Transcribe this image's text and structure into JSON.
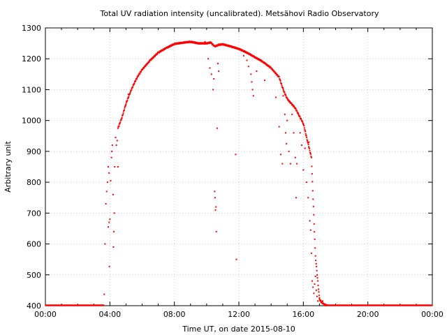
{
  "chart_data": {
    "type": "scatter",
    "title": "Total UV radiation intensity (uncalibrated). Metsähovi Radio Observatory",
    "xlabel": "Time UT, on date 2015-08-10",
    "ylabel": "Arbitrary unit",
    "xlim": [
      "00:00",
      "24:00"
    ],
    "ylim": [
      400,
      1300
    ],
    "x_ticks": [
      "00:00",
      "04:00",
      "08:00",
      "12:00",
      "16:00",
      "20:00",
      "00:00"
    ],
    "y_ticks": [
      400,
      500,
      600,
      700,
      800,
      900,
      1000,
      1100,
      1200,
      1300
    ],
    "grid": true,
    "legend": "none",
    "series_color": "#ff0000",
    "series": [
      {
        "x_unit": "hours UT",
        "baseline": {
          "x_range": [
            0.0,
            3.65
          ],
          "y": 400
        },
        "envelope": [
          [
            4.5,
            975
          ],
          [
            4.75,
            1010
          ],
          [
            5.0,
            1055
          ],
          [
            5.25,
            1090
          ],
          [
            5.5,
            1120
          ],
          [
            5.75,
            1145
          ],
          [
            6.0,
            1165
          ],
          [
            6.5,
            1195
          ],
          [
            7.0,
            1220
          ],
          [
            7.5,
            1235
          ],
          [
            8.0,
            1248
          ],
          [
            8.5,
            1252
          ],
          [
            9.0,
            1255
          ],
          [
            9.5,
            1250
          ],
          [
            10.0,
            1250
          ],
          [
            10.25,
            1253
          ],
          [
            10.5,
            1240
          ],
          [
            10.75,
            1245
          ],
          [
            11.0,
            1247
          ],
          [
            11.5,
            1240
          ],
          [
            12.0,
            1232
          ],
          [
            12.5,
            1220
          ],
          [
            13.0,
            1205
          ],
          [
            13.5,
            1190
          ],
          [
            14.0,
            1170
          ],
          [
            14.5,
            1140
          ],
          [
            14.75,
            1100
          ],
          [
            15.0,
            1070
          ],
          [
            15.25,
            1055
          ],
          [
            15.5,
            1040
          ],
          [
            15.75,
            1015
          ],
          [
            16.0,
            990
          ],
          [
            16.25,
            935
          ],
          [
            16.5,
            880
          ],
          [
            16.75,
            560
          ],
          [
            17.0,
            420
          ],
          [
            17.25,
            405
          ],
          [
            17.5,
            400
          ]
        ],
        "baseline_after": {
          "x_range": [
            17.3,
            24.0
          ],
          "y": 400
        },
        "scattered_points": [
          [
            3.65,
            437
          ],
          [
            3.7,
            600
          ],
          [
            3.75,
            730
          ],
          [
            3.8,
            770
          ],
          [
            3.85,
            800
          ],
          [
            3.9,
            850
          ],
          [
            3.95,
            830
          ],
          [
            3.9,
            655
          ],
          [
            3.95,
            670
          ],
          [
            3.97,
            527
          ],
          [
            4.0,
            680
          ],
          [
            4.05,
            805
          ],
          [
            4.1,
            880
          ],
          [
            4.12,
            900
          ],
          [
            4.15,
            920
          ],
          [
            4.2,
            760
          ],
          [
            4.22,
            590
          ],
          [
            4.25,
            640
          ],
          [
            4.27,
            700
          ],
          [
            4.3,
            850
          ],
          [
            4.35,
            945
          ],
          [
            4.4,
            920
          ],
          [
            4.45,
            935
          ],
          [
            4.5,
            850
          ],
          [
            4.55,
            980
          ],
          [
            5.15,
            1085
          ],
          [
            9.9,
            1255
          ],
          [
            10.1,
            1200
          ],
          [
            10.2,
            1170
          ],
          [
            10.3,
            1150
          ],
          [
            10.4,
            1100
          ],
          [
            10.45,
            1135
          ],
          [
            10.5,
            770
          ],
          [
            10.52,
            750
          ],
          [
            10.55,
            710
          ],
          [
            10.58,
            720
          ],
          [
            10.6,
            640
          ],
          [
            10.65,
            975
          ],
          [
            10.7,
            1185
          ],
          [
            10.75,
            1160
          ],
          [
            11.8,
            890
          ],
          [
            11.85,
            550
          ],
          [
            12.3,
            1210
          ],
          [
            12.5,
            1195
          ],
          [
            12.6,
            1175
          ],
          [
            12.75,
            1150
          ],
          [
            12.8,
            1125
          ],
          [
            12.85,
            1100
          ],
          [
            12.9,
            1080
          ],
          [
            13.1,
            1160
          ],
          [
            13.6,
            1130
          ],
          [
            14.3,
            1075
          ],
          [
            14.5,
            980
          ],
          [
            14.6,
            890
          ],
          [
            14.7,
            860
          ],
          [
            14.75,
            1080
          ],
          [
            14.85,
            1020
          ],
          [
            14.9,
            960
          ],
          [
            14.95,
            925
          ],
          [
            15.0,
            1000
          ],
          [
            15.1,
            900
          ],
          [
            15.2,
            860
          ],
          [
            15.3,
            1020
          ],
          [
            15.4,
            960
          ],
          [
            15.5,
            880
          ],
          [
            15.55,
            750
          ],
          [
            15.6,
            860
          ],
          [
            15.7,
            1020
          ],
          [
            15.8,
            960
          ],
          [
            15.9,
            920
          ],
          [
            16.0,
            840
          ],
          [
            16.1,
            910
          ],
          [
            16.2,
            800
          ],
          [
            16.3,
            750
          ],
          [
            16.35,
            930
          ],
          [
            16.4,
            675
          ],
          [
            16.45,
            645
          ],
          [
            16.5,
            570
          ],
          [
            16.55,
            480
          ],
          [
            16.6,
            460
          ],
          [
            16.65,
            440
          ],
          [
            16.7,
            470
          ],
          [
            16.75,
            495
          ],
          [
            16.8,
            450
          ],
          [
            16.85,
            430
          ],
          [
            16.9,
            415
          ],
          [
            17.0,
            425
          ],
          [
            17.1,
            410
          ],
          [
            17.2,
            415
          ],
          [
            17.3,
            405
          ]
        ]
      }
    ]
  }
}
